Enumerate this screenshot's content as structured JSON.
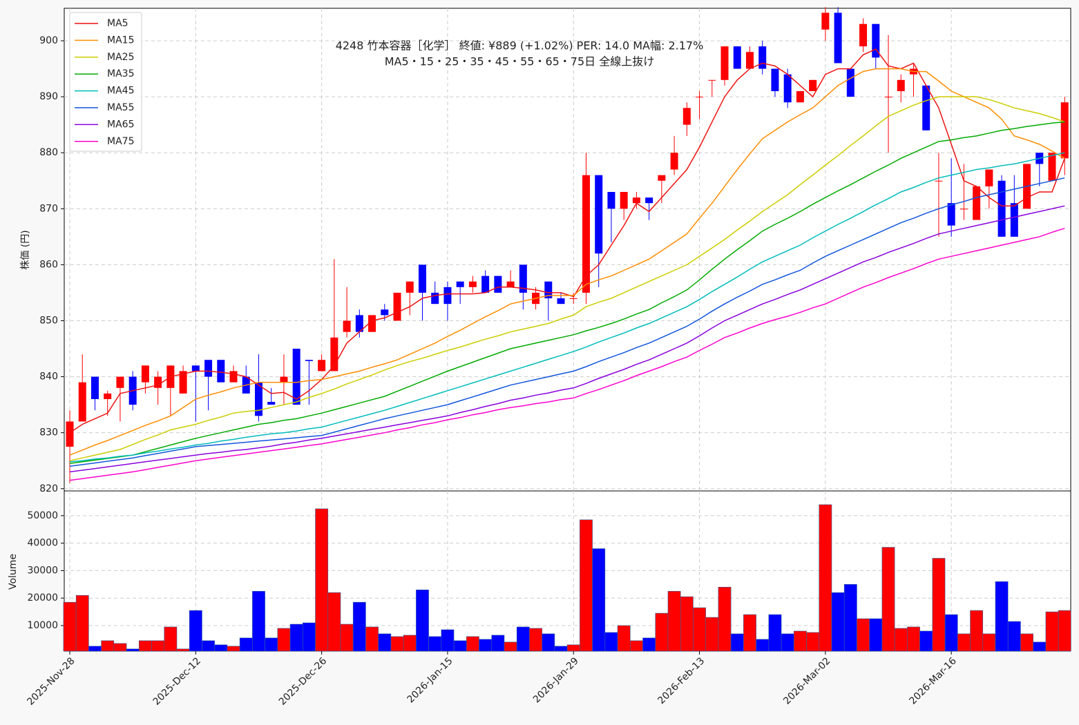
{
  "chart_data": {
    "type": "candlestick",
    "title": "4248  竹本容器［化学］ 終値: ¥889 (+1.02%)   PER: 14.0  MA幅: 2.17%",
    "subtitle": "MA5・15・25・35・45・55・65・75日 全線上抜け",
    "ylabel": "株価 (円)",
    "categories": [
      "2025-Nov-28",
      null,
      null,
      null,
      null,
      null,
      null,
      null,
      null,
      null,
      "2025-Dec-12",
      null,
      null,
      null,
      null,
      null,
      null,
      null,
      null,
      null,
      "2025-Dec-26",
      null,
      null,
      null,
      null,
      null,
      null,
      null,
      null,
      null,
      "2026-Jan-15",
      null,
      null,
      null,
      null,
      null,
      null,
      null,
      null,
      null,
      "2026-Jan-29",
      null,
      null,
      null,
      null,
      null,
      null,
      null,
      null,
      null,
      "2026-Feb-13",
      null,
      null,
      null,
      null,
      null,
      null,
      null,
      null,
      null,
      "2026-Mar-02",
      null,
      null,
      null,
      null,
      null,
      null,
      null,
      null,
      null,
      "2026-Mar-16",
      null,
      null,
      null,
      null,
      null,
      null,
      null,
      null,
      null
    ],
    "open": [
      827.5,
      832,
      840,
      836,
      838,
      840,
      839,
      838,
      838,
      837,
      842,
      843,
      843,
      839,
      840,
      839,
      835.5,
      839,
      845,
      843,
      841,
      841,
      848,
      851,
      848,
      852,
      850,
      855,
      860,
      855,
      856,
      857,
      856,
      858,
      858,
      856,
      860,
      853,
      857,
      854,
      854,
      855,
      876,
      873,
      870,
      871,
      872,
      875,
      877,
      885,
      890,
      893,
      893,
      899,
      895,
      899,
      895,
      894,
      889,
      891,
      902,
      905,
      895,
      899,
      903,
      890,
      891,
      894,
      892,
      875,
      871,
      870,
      868,
      874,
      875,
      871,
      870,
      880,
      875,
      879
    ],
    "high": [
      834,
      844,
      840,
      837.5,
      840,
      841,
      842,
      841,
      842,
      842,
      842,
      843,
      843,
      842,
      842,
      844,
      838,
      844,
      845,
      843,
      844,
      861,
      856,
      852,
      851,
      853,
      855,
      857,
      860,
      857,
      857,
      857,
      858,
      859,
      858,
      859,
      860,
      856,
      857,
      855,
      855,
      880,
      876,
      873,
      873,
      873,
      872,
      876,
      883,
      889,
      891,
      893,
      899,
      899,
      899,
      900,
      895,
      895,
      891,
      893,
      906,
      906,
      895,
      904,
      903,
      901,
      894,
      896,
      892,
      880,
      879,
      878,
      874,
      877,
      876,
      876,
      878,
      880,
      880,
      890
    ],
    "low": [
      821,
      832,
      834,
      833,
      832,
      834,
      837,
      835,
      833,
      837,
      832,
      834,
      839,
      839,
      837,
      832,
      835,
      835,
      835,
      835,
      841,
      841,
      847,
      847,
      848,
      850,
      850,
      851,
      850,
      853,
      850,
      853,
      855,
      855,
      855,
      856,
      852,
      852,
      850,
      853,
      853,
      853,
      856,
      864,
      868,
      870,
      868,
      871,
      876,
      883,
      886,
      890,
      892,
      895,
      895,
      894,
      890,
      888,
      889,
      891,
      900,
      896,
      890,
      898,
      895,
      880,
      889,
      890,
      884,
      865,
      865,
      868,
      868,
      870,
      865,
      865,
      870,
      874,
      875,
      876
    ],
    "close": [
      832,
      839,
      836,
      837,
      840,
      835,
      842,
      840,
      842,
      841,
      841,
      840,
      839,
      841,
      837,
      833,
      835,
      840,
      835,
      842.8,
      843,
      847,
      850,
      848,
      851,
      851,
      855,
      857,
      855,
      853,
      853,
      856,
      857,
      855,
      855,
      857,
      855,
      855,
      854,
      853,
      854,
      876,
      862,
      870,
      873,
      872,
      871,
      876,
      880,
      888,
      890,
      893,
      899,
      895,
      898,
      895,
      891,
      889,
      891,
      893,
      905,
      896,
      890,
      903,
      897,
      890,
      893,
      895,
      884,
      875,
      867,
      870,
      874,
      877,
      865,
      865,
      878,
      878,
      880,
      889
    ],
    "ylim": [
      819.6,
      905.8
    ],
    "yticks": [
      820,
      830,
      840,
      850,
      860,
      870,
      880,
      890,
      900
    ],
    "grid": true,
    "legend": "upper left",
    "up_color": "#ff0000",
    "down_color": "#0000ff",
    "series": [
      {
        "name": "MA5",
        "color": "#ee1111",
        "values": [
          830,
          831.5,
          832.5,
          833.5,
          837,
          837.5,
          838,
          838.5,
          840,
          840.5,
          841,
          841,
          840.8,
          840.5,
          840,
          838.5,
          837,
          837.2,
          836,
          837.5,
          839.5,
          842,
          846,
          848,
          850,
          850.5,
          851.5,
          852.5,
          854,
          854.5,
          854.8,
          854.8,
          854.8,
          855,
          856,
          856,
          855.8,
          855.5,
          855,
          855,
          854.3,
          858,
          860,
          863.5,
          867,
          871,
          869.5,
          872,
          874.5,
          877,
          881,
          885.5,
          890,
          893,
          895,
          896,
          895.5,
          894,
          892,
          890,
          894,
          895,
          895,
          897.5,
          898.5,
          895.5,
          895,
          896,
          892,
          888,
          881.5,
          875,
          874,
          872,
          870.5,
          870.5,
          872,
          873,
          873,
          879
        ]
      },
      {
        "name": "MA15",
        "color": "#ff8c00",
        "values": [
          826,
          826.9,
          827.8,
          828.6,
          829.5,
          830.4,
          831.3,
          832.1,
          833,
          834.5,
          836,
          836.7,
          837.3,
          838,
          838.5,
          839,
          839,
          839,
          839,
          839.3,
          839.5,
          840,
          840.5,
          841,
          841.7,
          842.3,
          843,
          844,
          845,
          846,
          847.2,
          848.3,
          849.5,
          850.7,
          851.8,
          853,
          853.5,
          854,
          854.5,
          854.5,
          854.5,
          856.5,
          857.3,
          858,
          859,
          860,
          861,
          862.5,
          864,
          865.5,
          868.3,
          871,
          874,
          877,
          879.8,
          882.5,
          884,
          885.5,
          886.8,
          888,
          890,
          892,
          893.3,
          894.5,
          895,
          895,
          895,
          894.5,
          894.5,
          892.8,
          891,
          890,
          889,
          888,
          886,
          883,
          882.3,
          881.5,
          880.3,
          879
        ]
      },
      {
        "name": "MA25",
        "color": "#cccc00",
        "values": [
          825,
          825.5,
          826,
          826.5,
          827,
          827.9,
          828.8,
          829.6,
          830.5,
          831,
          831.5,
          832.2,
          832.8,
          833.5,
          833.8,
          834,
          834.5,
          835,
          835.5,
          836.3,
          837,
          837.8,
          838.7,
          839.5,
          840.3,
          841.2,
          842,
          842.7,
          843.3,
          844,
          844.7,
          845.3,
          846,
          846.7,
          847.3,
          848,
          848.5,
          849,
          849.5,
          850.3,
          851,
          852.5,
          853.3,
          854,
          855,
          856,
          857,
          858,
          859,
          860,
          861.5,
          863,
          864.5,
          866.2,
          867.8,
          869.5,
          871,
          872.5,
          874.3,
          876,
          877.8,
          879.5,
          881.3,
          883,
          884.8,
          886.5,
          887.5,
          888.5,
          889.3,
          890,
          890,
          890,
          890,
          889.5,
          888.8,
          888,
          887.5,
          887,
          886.3,
          885.5
        ]
      },
      {
        "name": "MA35",
        "color": "#00aa00",
        "values": [
          824.5,
          824.8,
          825.1,
          825.4,
          825.7,
          826,
          826.6,
          827.2,
          827.8,
          828.4,
          829,
          829.5,
          830,
          830.5,
          831,
          831.5,
          831.8,
          832.2,
          832.5,
          833,
          833.5,
          834.1,
          834.7,
          835.3,
          835.9,
          836.5,
          837.4,
          838.3,
          839.2,
          840.1,
          841,
          841.8,
          842.6,
          843.4,
          844.2,
          845,
          845.5,
          846,
          846.5,
          847,
          847.5,
          848.2,
          848.8,
          849.5,
          850.3,
          851.2,
          852,
          853.2,
          854.3,
          855.5,
          857.3,
          859.2,
          861,
          862.7,
          864.3,
          866,
          867.2,
          868.3,
          869.5,
          870.8,
          872,
          873.2,
          874.3,
          875.5,
          876.7,
          877.8,
          879,
          880,
          881,
          882,
          882.3,
          882.7,
          883,
          883.5,
          884,
          884.3,
          884.7,
          885,
          885.3,
          885.5
        ]
      },
      {
        "name": "MA45",
        "color": "#00bbbb",
        "values": [
          824.8,
          825,
          825.3,
          825.5,
          825.8,
          826,
          826.4,
          826.7,
          827.1,
          827.4,
          827.8,
          828.1,
          828.5,
          828.8,
          829.2,
          829.5,
          829.8,
          830,
          830.3,
          830.7,
          831,
          831.6,
          832.2,
          832.8,
          833.4,
          834,
          834.7,
          835.4,
          836.1,
          836.8,
          837.5,
          838.2,
          838.9,
          839.6,
          840.3,
          841,
          841.7,
          842.4,
          843.1,
          843.8,
          844.5,
          845.3,
          846.2,
          847,
          847.8,
          848.7,
          849.5,
          850.5,
          851.5,
          852.5,
          853.8,
          855.2,
          856.5,
          857.8,
          859.2,
          860.5,
          861.5,
          862.5,
          863.5,
          864.8,
          866,
          867.2,
          868.3,
          869.5,
          870.7,
          871.8,
          873,
          873.8,
          874.7,
          875.5,
          876,
          876.5,
          877,
          877.3,
          877.7,
          878,
          878.5,
          879,
          879.5,
          880
        ]
      },
      {
        "name": "MA55",
        "color": "#1155dd",
        "values": [
          824,
          824.3,
          824.6,
          824.9,
          825.2,
          825.5,
          825.9,
          826.3,
          826.7,
          827.1,
          827.5,
          827.7,
          827.9,
          828.1,
          828.3,
          828.5,
          828.7,
          828.9,
          829.1,
          829.3,
          829.5,
          830.1,
          830.7,
          831.3,
          831.9,
          832.5,
          833,
          833.5,
          834,
          834.5,
          835,
          835.7,
          836.4,
          837.1,
          837.8,
          838.5,
          839,
          839.5,
          840,
          840.5,
          841,
          841.8,
          842.7,
          843.5,
          844.3,
          845.2,
          846,
          847,
          848,
          849,
          850.3,
          851.7,
          853,
          854.2,
          855.3,
          856.5,
          857.3,
          858.2,
          859,
          860.3,
          861.5,
          862.5,
          863.5,
          864.5,
          865.5,
          866.5,
          867.5,
          868.3,
          869.2,
          870,
          870.7,
          871.3,
          872,
          872.5,
          873,
          873.5,
          874,
          874.5,
          875,
          875.5
        ]
      },
      {
        "name": "MA65",
        "color": "#8800dd",
        "values": [
          823,
          823.3,
          823.6,
          823.9,
          824.2,
          824.5,
          824.8,
          825.1,
          825.4,
          825.7,
          826,
          826.3,
          826.5,
          826.8,
          827,
          827.3,
          827.6,
          828,
          828.3,
          828.7,
          829,
          829.4,
          829.8,
          830.2,
          830.6,
          831,
          831.4,
          831.8,
          832.2,
          832.6,
          833,
          833.6,
          834.1,
          834.7,
          835.2,
          835.8,
          836.2,
          836.7,
          837.1,
          837.6,
          838,
          838.8,
          839.7,
          840.5,
          841.3,
          842.2,
          843,
          844,
          845,
          846,
          847.3,
          848.7,
          850,
          851,
          852,
          853,
          853.8,
          854.7,
          855.5,
          856.5,
          857.5,
          858.5,
          859.5,
          860.5,
          861.3,
          862.2,
          863,
          863.8,
          864.7,
          865.5,
          866,
          866.5,
          867,
          867.5,
          868,
          868.5,
          869,
          869.5,
          870,
          870.5
        ]
      },
      {
        "name": "MA75",
        "color": "#ff00cc",
        "values": [
          821.5,
          821.8,
          822.1,
          822.4,
          822.7,
          823,
          823.4,
          823.8,
          824.2,
          824.6,
          825,
          825.3,
          825.6,
          825.9,
          826.2,
          826.5,
          826.8,
          827.1,
          827.4,
          827.7,
          828,
          828.4,
          828.8,
          829.2,
          829.6,
          830,
          830.5,
          830.9,
          831.4,
          831.8,
          832.3,
          832.7,
          833.2,
          833.6,
          834.1,
          834.5,
          834.8,
          835.2,
          835.5,
          835.9,
          836.2,
          837,
          837.7,
          838.5,
          839.3,
          840.2,
          841,
          841.8,
          842.7,
          843.5,
          844.7,
          845.8,
          847,
          847.8,
          848.7,
          849.5,
          850.2,
          850.8,
          851.5,
          852.3,
          853,
          854,
          855,
          856,
          856.8,
          857.7,
          858.5,
          859.3,
          860.2,
          861,
          861.5,
          862,
          862.5,
          863,
          863.5,
          864,
          864.5,
          865,
          865.8,
          866.5
        ]
      }
    ],
    "volume": {
      "type": "bar",
      "ylabel": "Volume",
      "ylim": [
        700,
        59000
      ],
      "yticks": [
        10000,
        20000,
        30000,
        40000,
        50000
      ],
      "values": [
        18500,
        21000,
        2500,
        4500,
        3500,
        1500,
        4500,
        4500,
        9500,
        1500,
        15500,
        4500,
        3000,
        2500,
        5500,
        22500,
        5500,
        9000,
        10500,
        11000,
        52500,
        22000,
        10500,
        18500,
        9500,
        7000,
        6000,
        6500,
        23000,
        6000,
        8500,
        4500,
        6000,
        5000,
        6500,
        4000,
        9500,
        9000,
        7000,
        2500,
        3000,
        48500,
        38000,
        7500,
        10000,
        4500,
        5500,
        14500,
        22500,
        20500,
        16500,
        13000,
        24000,
        7000,
        14000,
        5000,
        14000,
        7000,
        8000,
        7500,
        54000,
        22000,
        25000,
        12500,
        12500,
        38500,
        9000,
        9500,
        8000,
        34500,
        14000,
        7000,
        15500,
        7000,
        26000,
        11500,
        7000,
        4000,
        15000,
        15500
      ]
    }
  }
}
